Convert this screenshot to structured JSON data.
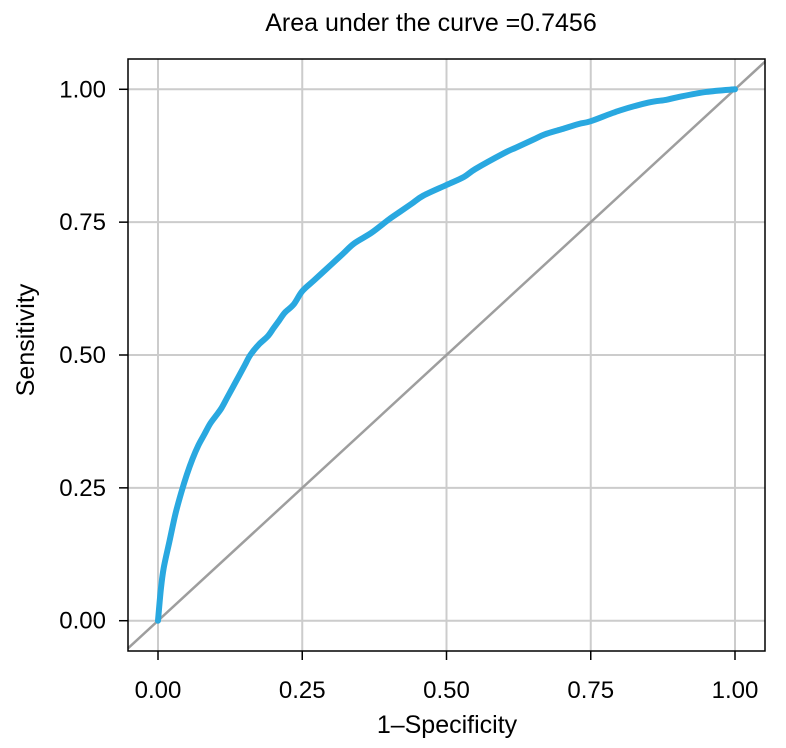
{
  "chart_data": {
    "type": "line",
    "title": "Area under the curve =0.7456",
    "xlabel": "1–Specificity",
    "ylabel": "Sensitivity",
    "xlim": [
      -0.052,
      1.052
    ],
    "ylim": [
      -0.057,
      1.057
    ],
    "x_ticks": [
      0,
      0.25,
      0.5,
      0.75,
      1
    ],
    "y_ticks": [
      0,
      0.25,
      0.5,
      0.75,
      1
    ],
    "x_tick_labels": [
      "0.00",
      "0.25",
      "0.50",
      "0.75",
      "1.00"
    ],
    "y_tick_labels": [
      "0.00",
      "0.25",
      "0.50",
      "0.75",
      "1.00"
    ],
    "grid": true,
    "legend": "none",
    "colors": {
      "roc_curve": "#29A8E0",
      "reference_line": "#9E9E9E",
      "grid": "#CCCCCC",
      "frame": "#000000"
    },
    "series": [
      {
        "x": [
          0,
          0.005,
          0.01,
          0.02,
          0.03,
          0.04,
          0.05,
          0.06,
          0.07,
          0.08,
          0.09,
          0.1,
          0.11,
          0.12,
          0.13,
          0.14,
          0.15,
          0.16,
          0.175,
          0.19,
          0.2,
          0.21,
          0.22,
          0.235,
          0.25,
          0.27,
          0.3,
          0.32,
          0.34,
          0.37,
          0.4,
          0.42,
          0.44,
          0.46,
          0.5,
          0.53,
          0.55,
          0.6,
          0.62,
          0.65,
          0.67,
          0.7,
          0.73,
          0.75,
          0.8,
          0.85,
          0.88,
          0.9,
          0.95,
          1
        ],
        "y": [
          0,
          0.06,
          0.1,
          0.15,
          0.2,
          0.24,
          0.275,
          0.305,
          0.33,
          0.35,
          0.37,
          0.385,
          0.4,
          0.42,
          0.44,
          0.46,
          0.48,
          0.5,
          0.52,
          0.535,
          0.55,
          0.565,
          0.58,
          0.595,
          0.62,
          0.64,
          0.67,
          0.69,
          0.71,
          0.73,
          0.755,
          0.77,
          0.785,
          0.8,
          0.82,
          0.835,
          0.85,
          0.88,
          0.89,
          0.905,
          0.915,
          0.925,
          0.935,
          0.94,
          0.96,
          0.975,
          0.98,
          0.985,
          0.995,
          1
        ]
      },
      {
        "x": [
          0,
          1
        ],
        "y": [
          0,
          1
        ]
      }
    ]
  }
}
